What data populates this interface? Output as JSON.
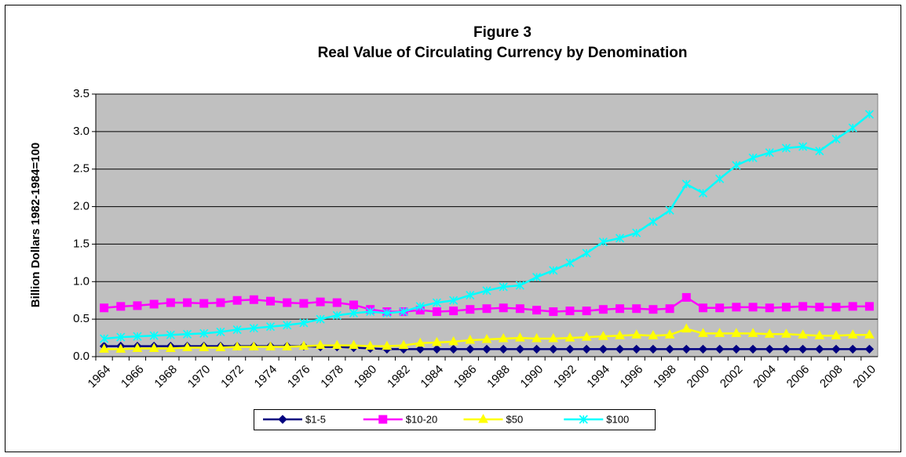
{
  "chart_data": {
    "type": "line",
    "title": "Figure 3",
    "subtitle": "Real Value of Circulating Currency by Denomination",
    "y_label": "Billion Dollars 1982-1984=100",
    "categories": [
      "1964",
      null,
      "1966",
      null,
      "1968",
      null,
      "1970",
      null,
      "1972",
      null,
      "1974",
      null,
      "1976",
      null,
      "1978",
      null,
      "1980",
      null,
      "1982",
      null,
      "1984",
      null,
      "1986",
      null,
      "1988",
      null,
      "1990",
      null,
      "1992",
      null,
      "1994",
      null,
      "1996",
      null,
      "1998",
      null,
      "2000",
      null,
      "2002",
      null,
      "2004",
      null,
      "2006",
      null,
      "2008",
      null,
      "2010"
    ],
    "series": [
      {
        "name": "$1-5",
        "color": "#000080",
        "marker": "diamond",
        "values": [
          0.14,
          0.14,
          0.14,
          0.14,
          0.14,
          0.14,
          0.14,
          0.14,
          0.14,
          0.14,
          0.14,
          0.14,
          0.14,
          0.13,
          0.13,
          0.12,
          0.11,
          0.1,
          0.1,
          0.1,
          0.1,
          0.1,
          0.1,
          0.1,
          0.1,
          0.1,
          0.1,
          0.1,
          0.1,
          0.1,
          0.1,
          0.1,
          0.1,
          0.1,
          0.1,
          0.1,
          0.1,
          0.1,
          0.1,
          0.1,
          0.1,
          0.1,
          0.1,
          0.1,
          0.1,
          0.1,
          0.1
        ]
      },
      {
        "name": "$10-20",
        "color": "#ff00ff",
        "marker": "square",
        "values": [
          0.65,
          0.67,
          0.68,
          0.7,
          0.72,
          0.72,
          0.71,
          0.72,
          0.75,
          0.76,
          0.74,
          0.72,
          0.71,
          0.73,
          0.72,
          0.69,
          0.63,
          0.6,
          0.6,
          0.62,
          0.6,
          0.61,
          0.63,
          0.64,
          0.65,
          0.64,
          0.62,
          0.6,
          0.61,
          0.61,
          0.63,
          0.64,
          0.64,
          0.63,
          0.64,
          0.79,
          0.65,
          0.65,
          0.66,
          0.66,
          0.65,
          0.66,
          0.67,
          0.66,
          0.66,
          0.67,
          0.67
        ]
      },
      {
        "name": "$50",
        "color": "#ffff00",
        "marker": "triangle",
        "values": [
          0.1,
          0.1,
          0.11,
          0.11,
          0.11,
          0.12,
          0.12,
          0.12,
          0.13,
          0.13,
          0.13,
          0.13,
          0.14,
          0.15,
          0.15,
          0.15,
          0.14,
          0.14,
          0.15,
          0.18,
          0.19,
          0.2,
          0.22,
          0.23,
          0.24,
          0.25,
          0.24,
          0.24,
          0.25,
          0.26,
          0.27,
          0.28,
          0.29,
          0.28,
          0.29,
          0.37,
          0.31,
          0.31,
          0.31,
          0.31,
          0.3,
          0.3,
          0.29,
          0.28,
          0.28,
          0.29,
          0.29
        ]
      },
      {
        "name": "$100",
        "color": "#00ffff",
        "marker": "star",
        "values": [
          0.24,
          0.26,
          0.27,
          0.28,
          0.29,
          0.3,
          0.31,
          0.33,
          0.36,
          0.38,
          0.4,
          0.42,
          0.45,
          0.5,
          0.55,
          0.58,
          0.6,
          0.58,
          0.6,
          0.67,
          0.72,
          0.75,
          0.82,
          0.88,
          0.93,
          0.95,
          1.06,
          1.15,
          1.25,
          1.38,
          1.53,
          1.58,
          1.65,
          1.8,
          1.95,
          2.3,
          2.18,
          2.37,
          2.55,
          2.65,
          2.72,
          2.78,
          2.8,
          2.74,
          2.9,
          3.05,
          3.23
        ]
      }
    ],
    "ylim": [
      0,
      3.5
    ],
    "yticks": [
      {
        "value": 0,
        "label": "0.0"
      },
      0.5,
      {
        "value": 1,
        "label": "1.0"
      },
      1.5,
      {
        "value": 2,
        "label": "2.0"
      },
      2.5,
      {
        "value": 3,
        "label": "3.0"
      },
      3.5
    ],
    "grid": true,
    "plot_background": "#c0c0c0",
    "legend": "bottom"
  }
}
